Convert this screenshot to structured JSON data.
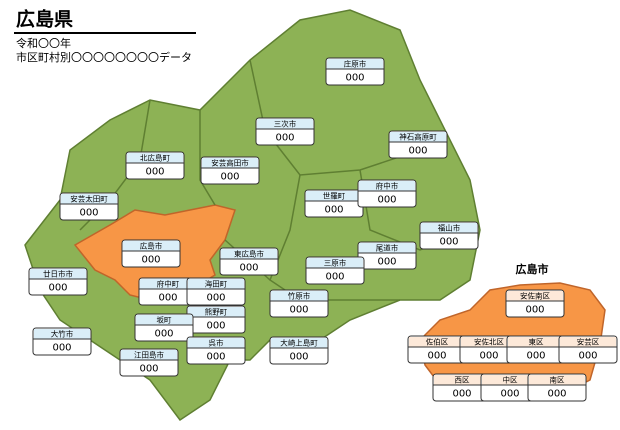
{
  "header": {
    "title": "広島県",
    "lines": [
      "令和〇〇年",
      "市区町村別〇〇〇〇〇〇〇〇データ"
    ]
  },
  "inset": {
    "title": "広島市"
  },
  "labels": [
    {
      "name": "庄原市",
      "value": "000"
    },
    {
      "name": "三次市",
      "value": "000"
    },
    {
      "name": "神石高原町",
      "value": "000"
    },
    {
      "name": "北広島町",
      "value": "000"
    },
    {
      "name": "安芸高田市",
      "value": "000"
    },
    {
      "name": "世羅町",
      "value": "000"
    },
    {
      "name": "府中市",
      "value": "000"
    },
    {
      "name": "安芸太田町",
      "value": "000"
    },
    {
      "name": "福山市",
      "value": "000"
    },
    {
      "name": "広島市",
      "value": "000"
    },
    {
      "name": "東広島市",
      "value": "000"
    },
    {
      "name": "尾道市",
      "value": "000"
    },
    {
      "name": "三原市",
      "value": "000"
    },
    {
      "name": "廿日市市",
      "value": "000"
    },
    {
      "name": "府中町",
      "value": "000"
    },
    {
      "name": "海田町",
      "value": "000"
    },
    {
      "name": "竹原市",
      "value": "000"
    },
    {
      "name": "熊野町",
      "value": "000"
    },
    {
      "name": "坂町",
      "value": "000"
    },
    {
      "name": "大竹市",
      "value": "000"
    },
    {
      "name": "江田島市",
      "value": "000"
    },
    {
      "name": "呉市",
      "value": "000"
    },
    {
      "name": "大崎上島町",
      "value": "000"
    }
  ],
  "inset_labels": [
    {
      "name": "安佐南区",
      "value": "000"
    },
    {
      "name": "佐伯区",
      "value": "000"
    },
    {
      "name": "安佐北区",
      "value": "000"
    },
    {
      "name": "東区",
      "value": "000"
    },
    {
      "name": "安芸区",
      "value": "000"
    },
    {
      "name": "西区",
      "value": "000"
    },
    {
      "name": "中区",
      "value": "000"
    },
    {
      "name": "南区",
      "value": "000"
    }
  ]
}
